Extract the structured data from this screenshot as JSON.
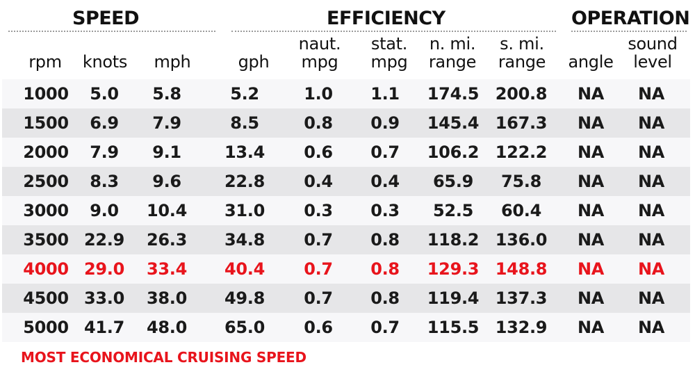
{
  "groups": {
    "speed": "SPEED",
    "efficiency": "EFFICIENCY",
    "operation": "OPERATION"
  },
  "columns": {
    "rpm": [
      "",
      "rpm"
    ],
    "knots": [
      "",
      "knots"
    ],
    "mph": [
      "",
      "mph"
    ],
    "gph": [
      "",
      "gph"
    ],
    "naut_mpg": [
      "naut.",
      "mpg"
    ],
    "stat_mpg": [
      "stat.",
      "mpg"
    ],
    "n_mi_range": [
      "n. mi.",
      "range"
    ],
    "s_mi_range": [
      "s. mi.",
      "range"
    ],
    "angle": [
      "",
      "angle"
    ],
    "sound_level": [
      "sound",
      "level"
    ]
  },
  "rows": [
    [
      "1000",
      "5.0",
      "5.8",
      "5.2",
      "1.0",
      "1.1",
      "174.5",
      "200.8",
      "NA",
      "NA"
    ],
    [
      "1500",
      "6.9",
      "7.9",
      "8.5",
      "0.8",
      "0.9",
      "145.4",
      "167.3",
      "NA",
      "NA"
    ],
    [
      "2000",
      "7.9",
      "9.1",
      "13.4",
      "0.6",
      "0.7",
      "106.2",
      "122.2",
      "NA",
      "NA"
    ],
    [
      "2500",
      "8.3",
      "9.6",
      "22.8",
      "0.4",
      "0.4",
      "65.9",
      "75.8",
      "NA",
      "NA"
    ],
    [
      "3000",
      "9.0",
      "10.4",
      "31.0",
      "0.3",
      "0.3",
      "52.5",
      "60.4",
      "NA",
      "NA"
    ],
    [
      "3500",
      "22.9",
      "26.3",
      "34.8",
      "0.7",
      "0.8",
      "118.2",
      "136.0",
      "NA",
      "NA"
    ],
    [
      "4000",
      "29.0",
      "33.4",
      "40.4",
      "0.7",
      "0.8",
      "129.3",
      "148.8",
      "NA",
      "NA"
    ],
    [
      "4500",
      "33.0",
      "38.0",
      "49.8",
      "0.7",
      "0.8",
      "119.4",
      "137.3",
      "NA",
      "NA"
    ],
    [
      "5000",
      "41.7",
      "48.0",
      "65.0",
      "0.6",
      "0.7",
      "115.5",
      "132.9",
      "NA",
      "NA"
    ]
  ],
  "highlight_row_index": 6,
  "footnote": "MOST ECONOMICAL CRUISING SPEED",
  "colors": {
    "highlight": "#e8141c",
    "row_light": "#f7f7f9",
    "row_dark": "#e6e6e8",
    "text": "#1a1a1a"
  },
  "chart_data": {
    "type": "table",
    "title": "",
    "column_groups": [
      {
        "name": "SPEED",
        "columns": [
          "rpm",
          "knots",
          "mph"
        ]
      },
      {
        "name": "EFFICIENCY",
        "columns": [
          "gph",
          "naut. mpg",
          "stat. mpg",
          "n. mi. range",
          "s. mi. range"
        ]
      },
      {
        "name": "OPERATION",
        "columns": [
          "angle",
          "sound level"
        ]
      }
    ],
    "columns": [
      "rpm",
      "knots",
      "mph",
      "gph",
      "naut. mpg",
      "stat. mpg",
      "n. mi. range",
      "s. mi. range",
      "angle",
      "sound level"
    ],
    "rows": [
      [
        1000,
        5.0,
        5.8,
        5.2,
        1.0,
        1.1,
        174.5,
        200.8,
        "NA",
        "NA"
      ],
      [
        1500,
        6.9,
        7.9,
        8.5,
        0.8,
        0.9,
        145.4,
        167.3,
        "NA",
        "NA"
      ],
      [
        2000,
        7.9,
        9.1,
        13.4,
        0.6,
        0.7,
        106.2,
        122.2,
        "NA",
        "NA"
      ],
      [
        2500,
        8.3,
        9.6,
        22.8,
        0.4,
        0.4,
        65.9,
        75.8,
        "NA",
        "NA"
      ],
      [
        3000,
        9.0,
        10.4,
        31.0,
        0.3,
        0.3,
        52.5,
        60.4,
        "NA",
        "NA"
      ],
      [
        3500,
        22.9,
        26.3,
        34.8,
        0.7,
        0.8,
        118.2,
        136.0,
        "NA",
        "NA"
      ],
      [
        4000,
        29.0,
        33.4,
        40.4,
        0.7,
        0.8,
        129.3,
        148.8,
        "NA",
        "NA"
      ],
      [
        4500,
        33.0,
        38.0,
        49.8,
        0.7,
        0.8,
        119.4,
        137.3,
        "NA",
        "NA"
      ],
      [
        5000,
        41.7,
        48.0,
        65.0,
        0.6,
        0.7,
        115.5,
        132.9,
        "NA",
        "NA"
      ]
    ],
    "highlighted_row": {
      "rpm": 4000,
      "note": "MOST ECONOMICAL CRUISING SPEED",
      "color": "#e8141c"
    },
    "annotations": [
      "MOST ECONOMICAL CRUISING SPEED"
    ]
  }
}
